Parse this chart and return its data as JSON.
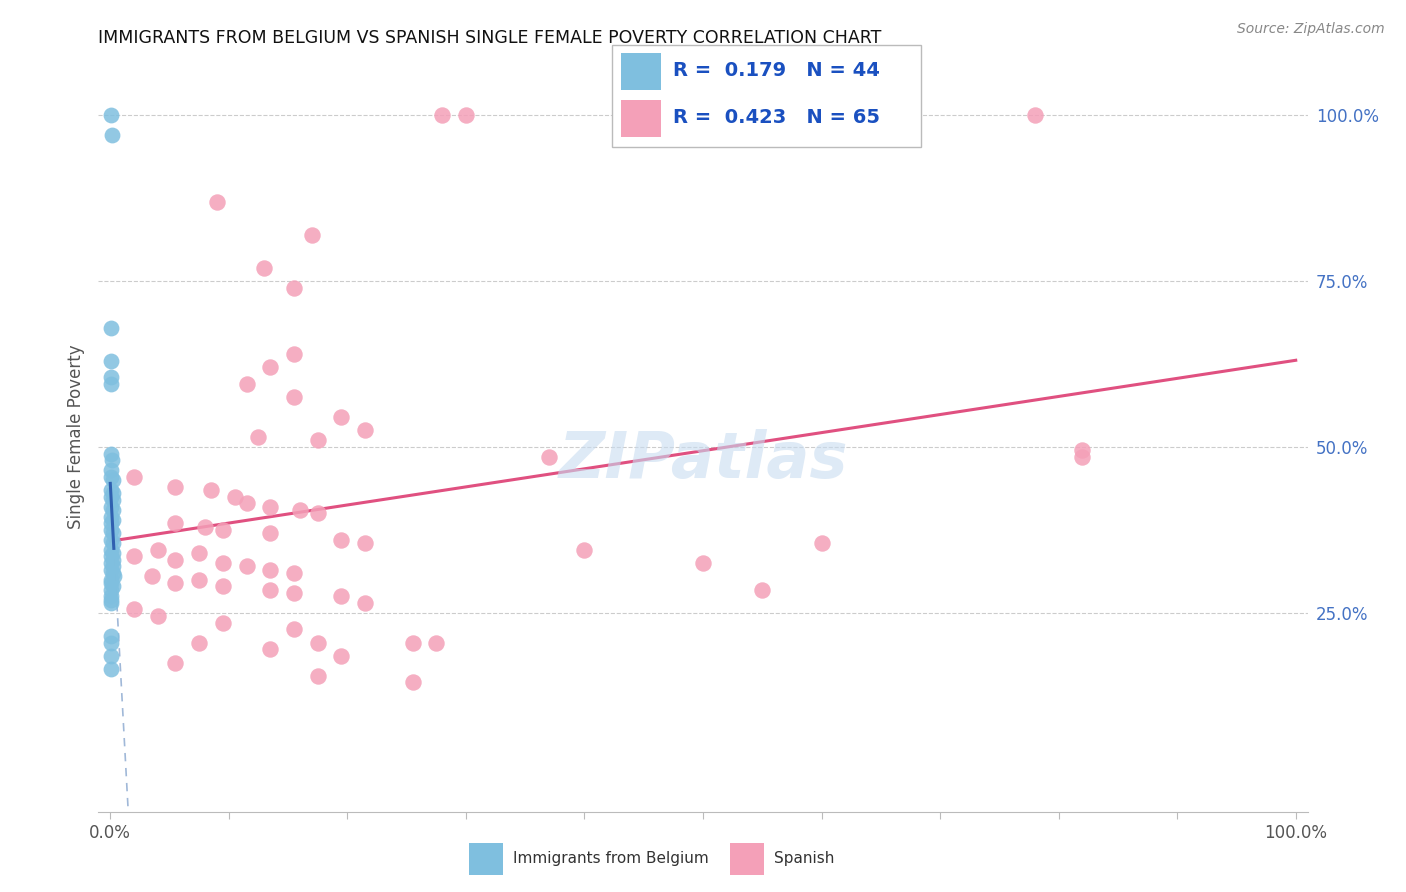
{
  "title": "IMMIGRANTS FROM BELGIUM VS SPANISH SINGLE FEMALE POVERTY CORRELATION CHART",
  "source": "Source: ZipAtlas.com",
  "ylabel": "Single Female Poverty",
  "legend_label1": "Immigrants from Belgium",
  "legend_label2": "Spanish",
  "R1": "0.179",
  "N1": "44",
  "R2": "0.423",
  "N2": "65",
  "blue_color": "#7fbfdf",
  "pink_color": "#f4a0b8",
  "blue_line_color": "#3060b0",
  "pink_line_color": "#e05080",
  "dashed_line_color": "#a0b8d8",
  "blue_scatter": [
    [
      0.0008,
      1.0
    ],
    [
      0.0015,
      0.97
    ],
    [
      0.001,
      0.68
    ],
    [
      0.001,
      0.63
    ],
    [
      0.001,
      0.605
    ],
    [
      0.001,
      0.595
    ],
    [
      0.001,
      0.49
    ],
    [
      0.0015,
      0.48
    ],
    [
      0.001,
      0.465
    ],
    [
      0.001,
      0.455
    ],
    [
      0.002,
      0.45
    ],
    [
      0.001,
      0.435
    ],
    [
      0.002,
      0.43
    ],
    [
      0.001,
      0.425
    ],
    [
      0.002,
      0.42
    ],
    [
      0.001,
      0.41
    ],
    [
      0.002,
      0.405
    ],
    [
      0.001,
      0.395
    ],
    [
      0.002,
      0.39
    ],
    [
      0.001,
      0.385
    ],
    [
      0.001,
      0.375
    ],
    [
      0.0025,
      0.37
    ],
    [
      0.001,
      0.36
    ],
    [
      0.002,
      0.355
    ],
    [
      0.001,
      0.345
    ],
    [
      0.002,
      0.34
    ],
    [
      0.001,
      0.335
    ],
    [
      0.002,
      0.33
    ],
    [
      0.001,
      0.325
    ],
    [
      0.002,
      0.32
    ],
    [
      0.001,
      0.315
    ],
    [
      0.002,
      0.31
    ],
    [
      0.003,
      0.305
    ],
    [
      0.001,
      0.3
    ],
    [
      0.001,
      0.295
    ],
    [
      0.002,
      0.29
    ],
    [
      0.001,
      0.285
    ],
    [
      0.001,
      0.275
    ],
    [
      0.001,
      0.27
    ],
    [
      0.001,
      0.265
    ],
    [
      0.001,
      0.215
    ],
    [
      0.001,
      0.205
    ],
    [
      0.001,
      0.185
    ],
    [
      0.001,
      0.165
    ]
  ],
  "pink_scatter": [
    [
      0.28,
      1.0
    ],
    [
      0.3,
      1.0
    ],
    [
      0.78,
      1.0
    ],
    [
      0.09,
      0.87
    ],
    [
      0.17,
      0.82
    ],
    [
      0.13,
      0.77
    ],
    [
      0.155,
      0.74
    ],
    [
      0.155,
      0.64
    ],
    [
      0.135,
      0.62
    ],
    [
      0.115,
      0.595
    ],
    [
      0.155,
      0.575
    ],
    [
      0.195,
      0.545
    ],
    [
      0.215,
      0.525
    ],
    [
      0.125,
      0.515
    ],
    [
      0.175,
      0.51
    ],
    [
      0.37,
      0.485
    ],
    [
      0.02,
      0.455
    ],
    [
      0.055,
      0.44
    ],
    [
      0.085,
      0.435
    ],
    [
      0.105,
      0.425
    ],
    [
      0.115,
      0.415
    ],
    [
      0.135,
      0.41
    ],
    [
      0.16,
      0.405
    ],
    [
      0.175,
      0.4
    ],
    [
      0.055,
      0.385
    ],
    [
      0.08,
      0.38
    ],
    [
      0.095,
      0.375
    ],
    [
      0.135,
      0.37
    ],
    [
      0.195,
      0.36
    ],
    [
      0.215,
      0.355
    ],
    [
      0.04,
      0.345
    ],
    [
      0.075,
      0.34
    ],
    [
      0.02,
      0.335
    ],
    [
      0.055,
      0.33
    ],
    [
      0.095,
      0.325
    ],
    [
      0.115,
      0.32
    ],
    [
      0.135,
      0.315
    ],
    [
      0.155,
      0.31
    ],
    [
      0.035,
      0.305
    ],
    [
      0.075,
      0.3
    ],
    [
      0.055,
      0.295
    ],
    [
      0.095,
      0.29
    ],
    [
      0.135,
      0.285
    ],
    [
      0.155,
      0.28
    ],
    [
      0.195,
      0.275
    ],
    [
      0.215,
      0.265
    ],
    [
      0.02,
      0.255
    ],
    [
      0.04,
      0.245
    ],
    [
      0.095,
      0.235
    ],
    [
      0.155,
      0.225
    ],
    [
      0.075,
      0.205
    ],
    [
      0.175,
      0.205
    ],
    [
      0.255,
      0.205
    ],
    [
      0.275,
      0.205
    ],
    [
      0.135,
      0.195
    ],
    [
      0.195,
      0.185
    ],
    [
      0.055,
      0.175
    ],
    [
      0.175,
      0.155
    ],
    [
      0.255,
      0.145
    ],
    [
      0.4,
      0.345
    ],
    [
      0.5,
      0.325
    ],
    [
      0.6,
      0.355
    ],
    [
      0.55,
      0.285
    ],
    [
      0.82,
      0.495
    ],
    [
      0.82,
      0.485
    ]
  ],
  "xlim": [
    -0.01,
    1.01
  ],
  "ylim": [
    -0.05,
    1.08
  ],
  "ytick_positions": [
    0.0,
    0.25,
    0.5,
    0.75,
    1.0
  ],
  "ytick_labels": [
    "",
    "25.0%",
    "50.0%",
    "75.0%",
    "100.0%"
  ],
  "xtick_positions": [
    0.0,
    0.1,
    0.2,
    0.3,
    0.4,
    0.5,
    0.6,
    0.7,
    0.8,
    0.9,
    1.0
  ],
  "xtick_labels_show": {
    "0.0": "0.0%",
    "1.0": "100.0%"
  }
}
